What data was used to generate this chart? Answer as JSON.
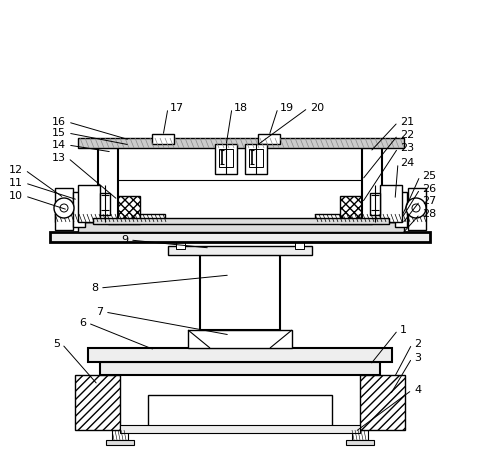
{
  "background_color": "#ffffff",
  "line_color": "#000000",
  "figsize": [
    4.81,
    4.71
  ],
  "dpi": 100
}
